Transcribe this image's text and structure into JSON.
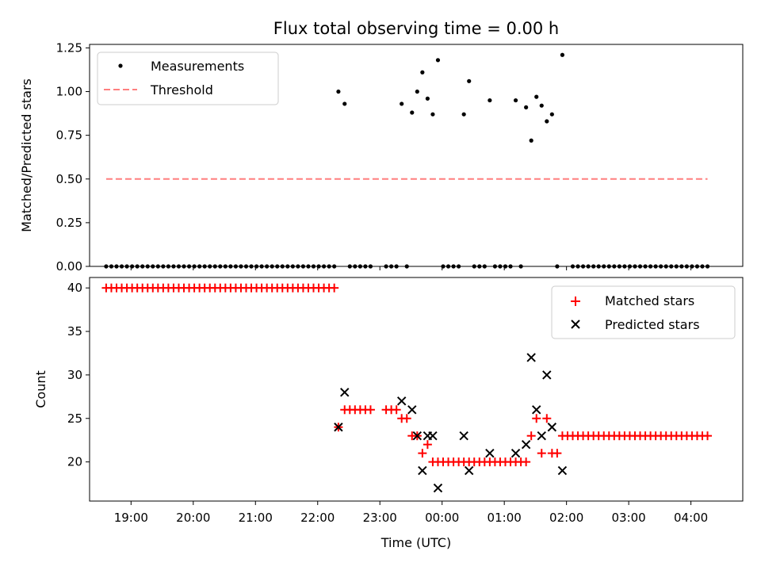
{
  "chart_data": [
    {
      "type": "scatter",
      "title": "Flux total observing time = 0.00 h",
      "ylabel": "Matched/Predicted stars",
      "xlabel": "",
      "ylim": [
        0,
        1.27
      ],
      "yticks": [
        "0.00",
        "0.25",
        "0.50",
        "0.75",
        "1.00",
        "1.25"
      ],
      "ytick_values": [
        0,
        0.25,
        0.5,
        0.75,
        1.0,
        1.25
      ],
      "legend_position": "upper-left",
      "threshold": {
        "name": "Threshold",
        "value": 0.5,
        "color": "#ff7f7f",
        "x_range": [
          "18:36",
          "04:16"
        ]
      },
      "series": [
        {
          "name": "Measurements",
          "color": "#000000",
          "points": [
            [
              "18:36",
              0
            ],
            [
              "18:41",
              0
            ],
            [
              "18:46",
              0
            ],
            [
              "18:51",
              0
            ],
            [
              "18:56",
              0
            ],
            [
              "19:01",
              0
            ],
            [
              "19:06",
              0
            ],
            [
              "19:11",
              0
            ],
            [
              "19:16",
              0
            ],
            [
              "19:21",
              0
            ],
            [
              "19:26",
              0
            ],
            [
              "19:31",
              0
            ],
            [
              "19:36",
              0
            ],
            [
              "19:41",
              0
            ],
            [
              "19:46",
              0
            ],
            [
              "19:51",
              0
            ],
            [
              "19:56",
              0
            ],
            [
              "20:01",
              0
            ],
            [
              "20:06",
              0
            ],
            [
              "20:11",
              0
            ],
            [
              "20:16",
              0
            ],
            [
              "20:21",
              0
            ],
            [
              "20:26",
              0
            ],
            [
              "20:31",
              0
            ],
            [
              "20:36",
              0
            ],
            [
              "20:41",
              0
            ],
            [
              "20:46",
              0
            ],
            [
              "20:51",
              0
            ],
            [
              "20:56",
              0
            ],
            [
              "21:01",
              0
            ],
            [
              "21:06",
              0
            ],
            [
              "21:11",
              0
            ],
            [
              "21:16",
              0
            ],
            [
              "21:21",
              0
            ],
            [
              "21:26",
              0
            ],
            [
              "21:31",
              0
            ],
            [
              "21:36",
              0
            ],
            [
              "21:41",
              0
            ],
            [
              "21:46",
              0
            ],
            [
              "21:51",
              0
            ],
            [
              "21:56",
              0
            ],
            [
              "22:01",
              0
            ],
            [
              "22:06",
              0
            ],
            [
              "22:11",
              0
            ],
            [
              "22:16",
              0
            ],
            [
              "22:20",
              1.0
            ],
            [
              "22:26",
              0.93
            ],
            [
              "22:31",
              0
            ],
            [
              "22:36",
              0
            ],
            [
              "22:41",
              0
            ],
            [
              "22:46",
              0
            ],
            [
              "22:51",
              0
            ],
            [
              "23:06",
              0
            ],
            [
              "23:11",
              0
            ],
            [
              "23:16",
              0
            ],
            [
              "23:21",
              0.93
            ],
            [
              "23:26",
              0
            ],
            [
              "23:31",
              0.88
            ],
            [
              "23:36",
              1.0
            ],
            [
              "23:41",
              1.11
            ],
            [
              "23:46",
              0.96
            ],
            [
              "23:51",
              0.87
            ],
            [
              "23:56",
              1.18
            ],
            [
              "00:01",
              0
            ],
            [
              "00:06",
              0
            ],
            [
              "00:11",
              0
            ],
            [
              "00:16",
              0
            ],
            [
              "00:21",
              0.87
            ],
            [
              "00:26",
              1.06
            ],
            [
              "00:31",
              0
            ],
            [
              "00:36",
              0
            ],
            [
              "00:41",
              0
            ],
            [
              "00:46",
              0.95
            ],
            [
              "00:51",
              0
            ],
            [
              "00:56",
              0
            ],
            [
              "01:01",
              0
            ],
            [
              "01:06",
              0
            ],
            [
              "01:11",
              0.95
            ],
            [
              "01:16",
              0
            ],
            [
              "01:21",
              0.91
            ],
            [
              "01:26",
              0.72
            ],
            [
              "01:31",
              0.97
            ],
            [
              "01:36",
              0.92
            ],
            [
              "01:41",
              0.83
            ],
            [
              "01:46",
              0.87
            ],
            [
              "01:51",
              0
            ],
            [
              "01:56",
              1.21
            ],
            [
              "02:06",
              0
            ],
            [
              "02:11",
              0
            ],
            [
              "02:16",
              0
            ],
            [
              "02:21",
              0
            ],
            [
              "02:26",
              0
            ],
            [
              "02:31",
              0
            ],
            [
              "02:36",
              0
            ],
            [
              "02:41",
              0
            ],
            [
              "02:46",
              0
            ],
            [
              "02:51",
              0
            ],
            [
              "02:56",
              0
            ],
            [
              "03:01",
              0
            ],
            [
              "03:06",
              0
            ],
            [
              "03:11",
              0
            ],
            [
              "03:16",
              0
            ],
            [
              "03:21",
              0
            ],
            [
              "03:26",
              0
            ],
            [
              "03:31",
              0
            ],
            [
              "03:36",
              0
            ],
            [
              "03:41",
              0
            ],
            [
              "03:46",
              0
            ],
            [
              "03:51",
              0
            ],
            [
              "03:56",
              0
            ],
            [
              "04:01",
              0
            ],
            [
              "04:06",
              0
            ],
            [
              "04:11",
              0
            ],
            [
              "04:16",
              0
            ]
          ]
        }
      ]
    },
    {
      "type": "scatter",
      "title": "",
      "ylabel": "Count",
      "xlabel": "Time (UTC)",
      "ylim": [
        15.5,
        41.2
      ],
      "yticks": [
        "20",
        "25",
        "30",
        "35",
        "40"
      ],
      "ytick_values": [
        20,
        25,
        30,
        35,
        40
      ],
      "xticks": [
        "19:00",
        "20:00",
        "21:00",
        "22:00",
        "23:00",
        "00:00",
        "01:00",
        "02:00",
        "03:00",
        "04:00"
      ],
      "legend_position": "upper-right",
      "series": [
        {
          "name": "Matched stars",
          "color": "#ff0000",
          "marker": "plus",
          "points": [
            [
              "18:36",
              40
            ],
            [
              "18:41",
              40
            ],
            [
              "18:46",
              40
            ],
            [
              "18:51",
              40
            ],
            [
              "18:56",
              40
            ],
            [
              "19:01",
              40
            ],
            [
              "19:06",
              40
            ],
            [
              "19:11",
              40
            ],
            [
              "19:16",
              40
            ],
            [
              "19:21",
              40
            ],
            [
              "19:26",
              40
            ],
            [
              "19:31",
              40
            ],
            [
              "19:36",
              40
            ],
            [
              "19:41",
              40
            ],
            [
              "19:46",
              40
            ],
            [
              "19:51",
              40
            ],
            [
              "19:56",
              40
            ],
            [
              "20:01",
              40
            ],
            [
              "20:06",
              40
            ],
            [
              "20:11",
              40
            ],
            [
              "20:16",
              40
            ],
            [
              "20:21",
              40
            ],
            [
              "20:26",
              40
            ],
            [
              "20:31",
              40
            ],
            [
              "20:36",
              40
            ],
            [
              "20:41",
              40
            ],
            [
              "20:46",
              40
            ],
            [
              "20:51",
              40
            ],
            [
              "20:56",
              40
            ],
            [
              "21:01",
              40
            ],
            [
              "21:06",
              40
            ],
            [
              "21:11",
              40
            ],
            [
              "21:16",
              40
            ],
            [
              "21:21",
              40
            ],
            [
              "21:26",
              40
            ],
            [
              "21:31",
              40
            ],
            [
              "21:36",
              40
            ],
            [
              "21:41",
              40
            ],
            [
              "21:46",
              40
            ],
            [
              "21:51",
              40
            ],
            [
              "21:56",
              40
            ],
            [
              "22:01",
              40
            ],
            [
              "22:06",
              40
            ],
            [
              "22:11",
              40
            ],
            [
              "22:16",
              40
            ],
            [
              "22:20",
              24
            ],
            [
              "22:26",
              26
            ],
            [
              "22:31",
              26
            ],
            [
              "22:36",
              26
            ],
            [
              "22:41",
              26
            ],
            [
              "22:46",
              26
            ],
            [
              "22:51",
              26
            ],
            [
              "23:06",
              26
            ],
            [
              "23:11",
              26
            ],
            [
              "23:16",
              26
            ],
            [
              "23:21",
              25
            ],
            [
              "23:26",
              25
            ],
            [
              "23:31",
              23
            ],
            [
              "23:36",
              23
            ],
            [
              "23:41",
              21
            ],
            [
              "23:46",
              22
            ],
            [
              "23:51",
              20
            ],
            [
              "23:56",
              20
            ],
            [
              "00:01",
              20
            ],
            [
              "00:06",
              20
            ],
            [
              "00:11",
              20
            ],
            [
              "00:16",
              20
            ],
            [
              "00:21",
              20
            ],
            [
              "00:26",
              20
            ],
            [
              "00:31",
              20
            ],
            [
              "00:36",
              20
            ],
            [
              "00:41",
              20
            ],
            [
              "00:46",
              20
            ],
            [
              "00:51",
              20
            ],
            [
              "00:56",
              20
            ],
            [
              "01:01",
              20
            ],
            [
              "01:06",
              20
            ],
            [
              "01:11",
              20
            ],
            [
              "01:16",
              20
            ],
            [
              "01:21",
              20
            ],
            [
              "01:26",
              23
            ],
            [
              "01:31",
              25
            ],
            [
              "01:36",
              21
            ],
            [
              "01:41",
              25
            ],
            [
              "01:46",
              21
            ],
            [
              "01:51",
              21
            ],
            [
              "01:56",
              23
            ],
            [
              "02:01",
              23
            ],
            [
              "02:06",
              23
            ],
            [
              "02:11",
              23
            ],
            [
              "02:16",
              23
            ],
            [
              "02:21",
              23
            ],
            [
              "02:26",
              23
            ],
            [
              "02:31",
              23
            ],
            [
              "02:36",
              23
            ],
            [
              "02:41",
              23
            ],
            [
              "02:46",
              23
            ],
            [
              "02:51",
              23
            ],
            [
              "02:56",
              23
            ],
            [
              "03:01",
              23
            ],
            [
              "03:06",
              23
            ],
            [
              "03:11",
              23
            ],
            [
              "03:16",
              23
            ],
            [
              "03:21",
              23
            ],
            [
              "03:26",
              23
            ],
            [
              "03:31",
              23
            ],
            [
              "03:36",
              23
            ],
            [
              "03:41",
              23
            ],
            [
              "03:46",
              23
            ],
            [
              "03:51",
              23
            ],
            [
              "03:56",
              23
            ],
            [
              "04:01",
              23
            ],
            [
              "04:06",
              23
            ],
            [
              "04:11",
              23
            ],
            [
              "04:16",
              23
            ]
          ]
        },
        {
          "name": "Predicted stars",
          "color": "#000000",
          "marker": "x",
          "points": [
            [
              "22:20",
              24
            ],
            [
              "22:26",
              28
            ],
            [
              "23:21",
              27
            ],
            [
              "23:31",
              26
            ],
            [
              "23:36",
              23
            ],
            [
              "23:41",
              19
            ],
            [
              "23:46",
              23
            ],
            [
              "23:51",
              23
            ],
            [
              "23:56",
              17
            ],
            [
              "00:21",
              23
            ],
            [
              "00:26",
              19
            ],
            [
              "00:46",
              21
            ],
            [
              "01:11",
              21
            ],
            [
              "01:21",
              22
            ],
            [
              "01:26",
              32
            ],
            [
              "01:31",
              26
            ],
            [
              "01:36",
              23
            ],
            [
              "01:41",
              30
            ],
            [
              "01:46",
              24
            ],
            [
              "01:56",
              19
            ]
          ]
        }
      ]
    }
  ]
}
